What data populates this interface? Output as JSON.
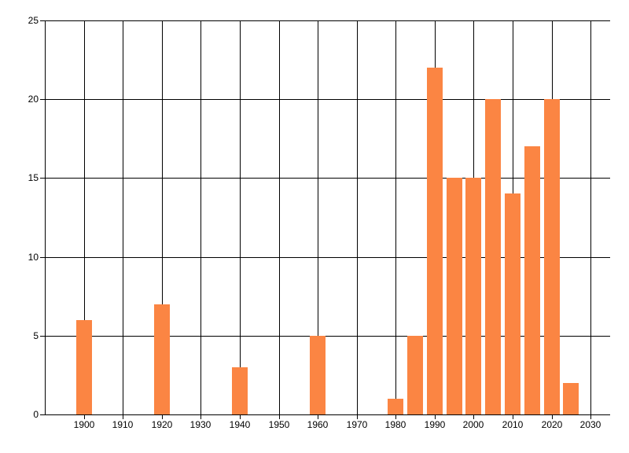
{
  "chart_data": {
    "type": "bar",
    "title": "",
    "xlabel": "",
    "ylabel": "",
    "x": [
      1900,
      1920,
      1940,
      1960,
      1980,
      1985,
      1990,
      1995,
      2000,
      2005,
      2010,
      2015,
      2020,
      2025
    ],
    "values": [
      6,
      7,
      3,
      5,
      1,
      5,
      22,
      15,
      15,
      20,
      14,
      17,
      20,
      2
    ],
    "xlim": [
      1890,
      2035
    ],
    "ylim": [
      0,
      25
    ],
    "x_ticks": [
      1900,
      1910,
      1920,
      1930,
      1940,
      1950,
      1960,
      1970,
      1980,
      1990,
      2000,
      2010,
      2020,
      2030
    ],
    "y_ticks": [
      0,
      5,
      10,
      15,
      20,
      25
    ],
    "grid": true,
    "legend_position": "none",
    "bar_color": "#fb8543",
    "axis_color": "#000000",
    "background_color": "#ffffff"
  }
}
